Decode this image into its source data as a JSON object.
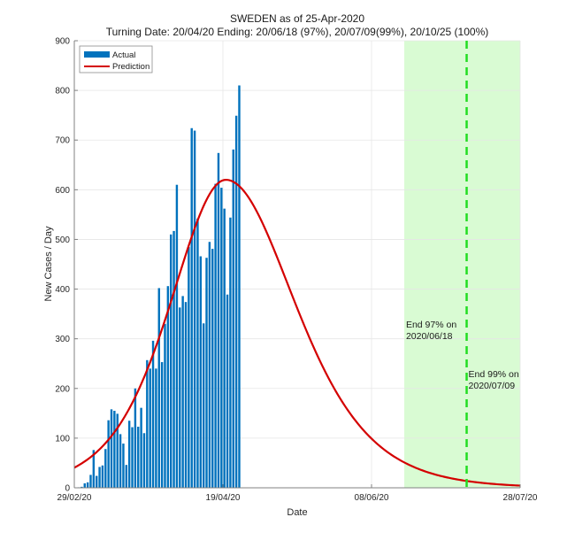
{
  "chart_data": {
    "type": "bar",
    "title": "SWEDEN as of 25-Apr-2020",
    "subtitle": "Turning Date: 20/04/20  Ending: 20/06/18 (97%), 20/07/09(99%), 20/10/25 (100%)",
    "xlabel": "Date",
    "ylabel": "New Cases / Day",
    "x_start_date": "2020-02-29",
    "x_range_days": [
      0,
      150
    ],
    "xticks": [
      {
        "day": 0,
        "label": "29/02/20"
      },
      {
        "day": 50,
        "label": "19/04/20"
      },
      {
        "day": 100,
        "label": "08/06/20"
      },
      {
        "day": 150,
        "label": "28/07/20"
      }
    ],
    "ylim": [
      0,
      900
    ],
    "yticks": [
      0,
      100,
      200,
      300,
      400,
      500,
      600,
      700,
      800,
      900
    ],
    "grid": true,
    "legend": {
      "placement": "top-left",
      "entries": [
        {
          "label": "Actual",
          "color": "#0072BD",
          "kind": "bar"
        },
        {
          "label": "Prediction",
          "color": "#D40000",
          "kind": "line"
        }
      ]
    },
    "series": [
      {
        "name": "Actual",
        "type": "bar",
        "color": "#0072BD",
        "start_day": 0,
        "values": [
          0,
          1,
          2,
          9,
          11,
          26,
          76,
          24,
          42,
          45,
          78,
          136,
          158,
          155,
          149,
          108,
          89,
          46,
          135,
          122,
          200,
          123,
          161,
          110,
          257,
          240,
          296,
          240,
          402,
          253,
          330,
          406,
          510,
          517,
          610,
          363,
          386,
          374,
          485,
          724,
          719,
          542,
          466,
          331,
          463,
          495,
          481,
          612,
          674,
          604,
          562,
          389,
          544,
          681,
          749,
          810
        ]
      },
      {
        "name": "Prediction",
        "type": "line",
        "color": "#D40000",
        "model": "asymmetric logistic derivative",
        "peak_day": 51,
        "peak_value": 620,
        "rate_before_peak": 0.08,
        "rate_after_peak": 0.064,
        "sample_points": [
          {
            "day": 0,
            "value": 40
          },
          {
            "day": 51,
            "value": 620
          },
          {
            "day": 71,
            "value": 398
          },
          {
            "day": 85,
            "value": 197
          },
          {
            "day": 100,
            "value": 100
          },
          {
            "day": 111,
            "value": 52
          },
          {
            "day": 150,
            "value": 7
          }
        ]
      }
    ],
    "shaded_region": {
      "from_day": 111,
      "to_day": 150,
      "color": "#d9fbd3",
      "meaning": "after 97% end date"
    },
    "dashed_line": {
      "day": 132,
      "color": "#22dd22"
    },
    "annotations": [
      {
        "day": 111,
        "value": 330,
        "lines": [
          "End 97% on",
          "2020/06/18"
        ]
      },
      {
        "day": 132,
        "value": 230,
        "lines": [
          "End 99% on",
          "2020/07/09"
        ]
      }
    ]
  }
}
